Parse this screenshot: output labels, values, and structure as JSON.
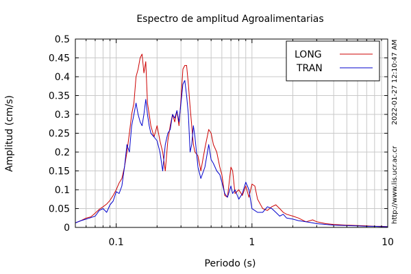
{
  "chart_data": {
    "type": "line",
    "title": "Espectro de amplitud Agroalimentarias",
    "xlabel": "Periodo (s)",
    "ylabel": "Amplitud (cm/s)",
    "xscale": "log",
    "xlim": [
      0.05,
      10
    ],
    "ylim": [
      0,
      0.5
    ],
    "x_ticks": [
      {
        "v": 0.1,
        "label": "0.1"
      },
      {
        "v": 1,
        "label": "1"
      },
      {
        "v": 10,
        "label": "10"
      }
    ],
    "y_ticks": [
      {
        "v": 0,
        "label": "0"
      },
      {
        "v": 0.05,
        "label": "0.05"
      },
      {
        "v": 0.1,
        "label": "0.1"
      },
      {
        "v": 0.15,
        "label": "0.15"
      },
      {
        "v": 0.2,
        "label": "0.2"
      },
      {
        "v": 0.25,
        "label": "0.25"
      },
      {
        "v": 0.3,
        "label": "0.3"
      },
      {
        "v": 0.35,
        "label": "0.35"
      },
      {
        "v": 0.4,
        "label": "0.4"
      },
      {
        "v": 0.45,
        "label": "0.45"
      },
      {
        "v": 0.5,
        "label": "0.5"
      }
    ],
    "grid": true,
    "legend_position": "top-right",
    "timestamp": "2022-01-27 12:10:47 AM",
    "source_url": "http://www.lis.ucr.ac.cr",
    "series": [
      {
        "name": "LONG",
        "color": "#cc0000",
        "x": [
          0.05,
          0.055,
          0.06,
          0.065,
          0.07,
          0.075,
          0.08,
          0.085,
          0.09,
          0.095,
          0.1,
          0.105,
          0.11,
          0.115,
          0.12,
          0.125,
          0.13,
          0.135,
          0.14,
          0.145,
          0.15,
          0.155,
          0.16,
          0.165,
          0.17,
          0.175,
          0.18,
          0.19,
          0.2,
          0.21,
          0.22,
          0.23,
          0.24,
          0.25,
          0.26,
          0.27,
          0.28,
          0.29,
          0.3,
          0.31,
          0.32,
          0.33,
          0.34,
          0.35,
          0.36,
          0.37,
          0.38,
          0.4,
          0.42,
          0.45,
          0.48,
          0.5,
          0.52,
          0.55,
          0.58,
          0.6,
          0.63,
          0.66,
          0.7,
          0.72,
          0.75,
          0.8,
          0.85,
          0.9,
          0.95,
          1.0,
          1.05,
          1.1,
          1.2,
          1.3,
          1.4,
          1.5,
          1.6,
          1.7,
          1.8,
          2.0,
          2.2,
          2.5,
          2.8,
          3.0,
          3.5,
          4.0,
          5.0,
          6.0,
          7.0,
          8.0,
          9.0,
          10.0
        ],
        "values": [
          0.012,
          0.018,
          0.025,
          0.028,
          0.038,
          0.048,
          0.055,
          0.062,
          0.072,
          0.085,
          0.1,
          0.118,
          0.13,
          0.16,
          0.2,
          0.25,
          0.3,
          0.33,
          0.4,
          0.42,
          0.45,
          0.46,
          0.41,
          0.44,
          0.33,
          0.3,
          0.27,
          0.24,
          0.27,
          0.23,
          0.2,
          0.15,
          0.23,
          0.27,
          0.3,
          0.28,
          0.31,
          0.27,
          0.34,
          0.42,
          0.43,
          0.43,
          0.38,
          0.32,
          0.27,
          0.22,
          0.2,
          0.19,
          0.15,
          0.21,
          0.26,
          0.25,
          0.22,
          0.2,
          0.16,
          0.14,
          0.085,
          0.08,
          0.16,
          0.15,
          0.09,
          0.1,
          0.085,
          0.11,
          0.08,
          0.115,
          0.11,
          0.075,
          0.05,
          0.045,
          0.055,
          0.06,
          0.05,
          0.04,
          0.035,
          0.03,
          0.025,
          0.015,
          0.02,
          0.015,
          0.01,
          0.008,
          0.006,
          0.005,
          0.004,
          0.003,
          0.003,
          0.002
        ]
      },
      {
        "name": "TRAN",
        "color": "#0000cc",
        "x": [
          0.05,
          0.055,
          0.06,
          0.065,
          0.07,
          0.075,
          0.08,
          0.085,
          0.09,
          0.095,
          0.1,
          0.105,
          0.11,
          0.115,
          0.12,
          0.125,
          0.13,
          0.135,
          0.14,
          0.145,
          0.15,
          0.155,
          0.16,
          0.165,
          0.17,
          0.175,
          0.18,
          0.19,
          0.2,
          0.21,
          0.22,
          0.23,
          0.24,
          0.25,
          0.26,
          0.27,
          0.28,
          0.29,
          0.3,
          0.31,
          0.32,
          0.33,
          0.34,
          0.35,
          0.36,
          0.37,
          0.38,
          0.4,
          0.42,
          0.45,
          0.48,
          0.5,
          0.52,
          0.55,
          0.58,
          0.6,
          0.63,
          0.66,
          0.7,
          0.72,
          0.75,
          0.8,
          0.85,
          0.9,
          0.95,
          1.0,
          1.05,
          1.1,
          1.2,
          1.3,
          1.4,
          1.5,
          1.6,
          1.7,
          1.8,
          2.0,
          2.2,
          2.5,
          2.8,
          3.0,
          3.5,
          4.0,
          5.0,
          6.0,
          7.0,
          8.0,
          9.0,
          10.0
        ],
        "values": [
          0.012,
          0.018,
          0.022,
          0.026,
          0.03,
          0.045,
          0.05,
          0.04,
          0.06,
          0.07,
          0.095,
          0.09,
          0.11,
          0.16,
          0.22,
          0.2,
          0.27,
          0.3,
          0.33,
          0.3,
          0.28,
          0.27,
          0.3,
          0.34,
          0.3,
          0.27,
          0.25,
          0.24,
          0.23,
          0.2,
          0.15,
          0.22,
          0.25,
          0.26,
          0.3,
          0.29,
          0.31,
          0.28,
          0.33,
          0.38,
          0.39,
          0.35,
          0.3,
          0.2,
          0.22,
          0.27,
          0.24,
          0.16,
          0.13,
          0.16,
          0.22,
          0.18,
          0.17,
          0.15,
          0.14,
          0.12,
          0.09,
          0.08,
          0.11,
          0.09,
          0.1,
          0.075,
          0.09,
          0.12,
          0.1,
          0.05,
          0.045,
          0.04,
          0.04,
          0.055,
          0.05,
          0.04,
          0.03,
          0.035,
          0.025,
          0.022,
          0.018,
          0.015,
          0.012,
          0.01,
          0.008,
          0.006,
          0.005,
          0.004,
          0.003,
          0.003,
          0.002,
          0.002
        ]
      }
    ]
  }
}
